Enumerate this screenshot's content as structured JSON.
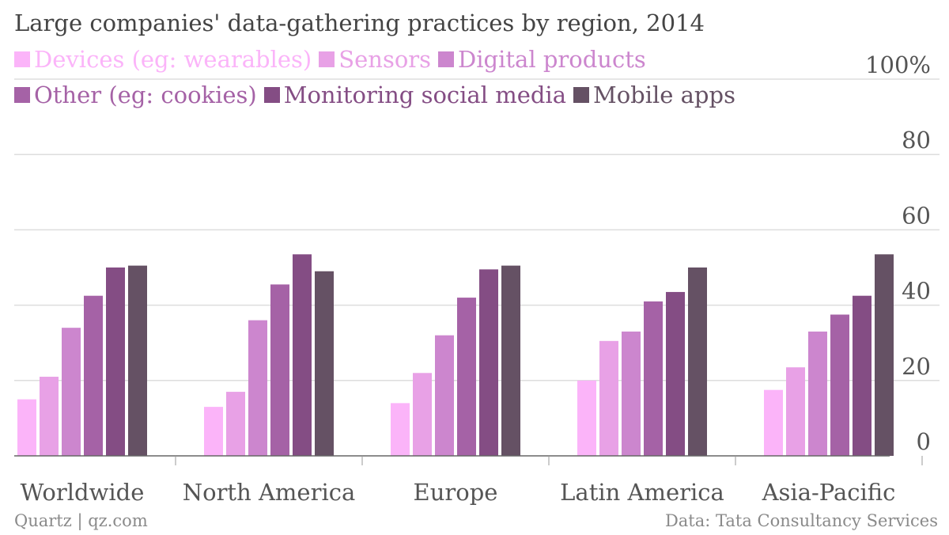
{
  "footer": {
    "credit": "Quartz | qz.com",
    "source": "Data: Tata Consultancy Services"
  },
  "chart_data": {
    "type": "bar",
    "title": "Large companies' data-gathering practices by region, 2014",
    "xlabel": "",
    "ylabel": "",
    "ylim": [
      0,
      100
    ],
    "yticks": [
      0,
      20,
      40,
      60,
      80,
      100
    ],
    "ytick_labels": [
      "0",
      "20",
      "40",
      "60",
      "80",
      "100%"
    ],
    "grid": true,
    "legend_position": "top-left",
    "categories": [
      "Worldwide",
      "North America",
      "Europe",
      "Latin America",
      "Asia-Pacific"
    ],
    "series": [
      {
        "name": "Devices (eg: wearables)",
        "color": "#fbb4f9",
        "values": [
          15,
          13,
          14,
          20,
          17.5
        ]
      },
      {
        "name": "Sensors",
        "color": "#e8a1e6",
        "values": [
          21,
          17,
          22,
          30.5,
          23.5
        ]
      },
      {
        "name": "Digital products",
        "color": "#cc86ce",
        "values": [
          34,
          36,
          32,
          33,
          33
        ]
      },
      {
        "name": "Other (eg: cookies)",
        "color": "#a562a6",
        "values": [
          42.5,
          45.5,
          42,
          41,
          37.5
        ]
      },
      {
        "name": "Monitoring social media",
        "color": "#844d84",
        "values": [
          50,
          53.5,
          49.5,
          43.5,
          42.5
        ]
      },
      {
        "name": "Mobile apps",
        "color": "#655164",
        "values": [
          50.5,
          49,
          50.5,
          50,
          53.5
        ]
      }
    ]
  }
}
